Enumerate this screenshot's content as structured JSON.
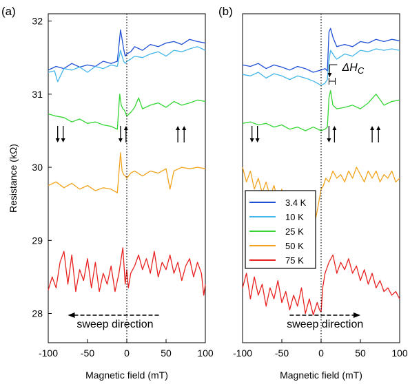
{
  "chart_data": [
    {
      "type": "line",
      "panel": "(a)",
      "xlabel": "Magnetic field (mT)",
      "ylabel": "Resistance (kΩ)",
      "xlim": [
        -100,
        100
      ],
      "ylim": [
        27.6,
        32.1
      ],
      "xticks": [
        "-100",
        "-50",
        "0",
        "50",
        "100"
      ],
      "yticks": [
        "28",
        "29",
        "30",
        "31",
        "32"
      ],
      "sweep_label": "sweep direction",
      "sweep_direction": "negative",
      "legend": null,
      "series": [
        {
          "name": "3.4 K",
          "color": "#1f4fd6",
          "x": [
            -100,
            -90,
            -80,
            -70,
            -60,
            -50,
            -40,
            -30,
            -20,
            -12,
            -8,
            -6,
            -4,
            -2,
            0,
            5,
            10,
            20,
            30,
            40,
            50,
            60,
            70,
            80,
            90,
            100
          ],
          "y": [
            31.33,
            31.38,
            31.35,
            31.42,
            31.37,
            31.4,
            31.38,
            31.45,
            31.42,
            31.45,
            31.88,
            31.75,
            31.62,
            31.52,
            31.55,
            31.58,
            31.65,
            31.6,
            31.68,
            31.65,
            31.7,
            31.72,
            31.68,
            31.75,
            31.72,
            31.7
          ]
        },
        {
          "name": "10 K",
          "color": "#42b6ea",
          "x": [
            -100,
            -92,
            -88,
            -80,
            -70,
            -60,
            -50,
            -40,
            -30,
            -20,
            -12,
            -8,
            -6,
            -4,
            -2,
            0,
            5,
            10,
            20,
            30,
            40,
            50,
            60,
            70,
            80,
            90,
            100
          ],
          "y": [
            31.3,
            31.32,
            31.17,
            31.35,
            31.33,
            31.37,
            31.3,
            31.38,
            31.35,
            31.4,
            31.38,
            31.6,
            31.52,
            31.45,
            31.42,
            31.45,
            31.48,
            31.52,
            31.5,
            31.55,
            31.58,
            31.52,
            31.6,
            31.58,
            31.62,
            31.65,
            31.6
          ]
        },
        {
          "name": "25 K",
          "color": "#33d633",
          "x": [
            -100,
            -90,
            -80,
            -70,
            -60,
            -50,
            -40,
            -30,
            -20,
            -12,
            -9,
            -7,
            -5,
            -3,
            0,
            5,
            10,
            15,
            20,
            30,
            40,
            50,
            60,
            70,
            80,
            90,
            100
          ],
          "y": [
            30.73,
            30.7,
            30.68,
            30.62,
            30.66,
            30.6,
            30.62,
            30.58,
            30.56,
            30.52,
            31.0,
            30.85,
            30.8,
            30.78,
            30.7,
            30.75,
            30.82,
            30.95,
            30.8,
            30.85,
            30.88,
            30.82,
            30.9,
            30.85,
            30.88,
            30.92,
            30.9
          ]
        },
        {
          "name": "50 K",
          "color": "#f2a31c",
          "x": [
            -100,
            -90,
            -80,
            -70,
            -60,
            -50,
            -40,
            -30,
            -20,
            -12,
            -8,
            -6,
            -4,
            -2,
            0,
            5,
            10,
            20,
            30,
            40,
            50,
            55,
            60,
            70,
            80,
            90,
            100
          ],
          "y": [
            29.75,
            29.8,
            29.72,
            29.78,
            29.7,
            29.75,
            29.68,
            29.72,
            29.7,
            29.65,
            30.2,
            29.95,
            29.9,
            29.88,
            29.85,
            29.92,
            29.95,
            29.88,
            29.95,
            29.92,
            29.98,
            29.7,
            29.95,
            30.0,
            29.98,
            30.0,
            29.98
          ]
        },
        {
          "name": "75 K",
          "color": "#e8211f",
          "x": [
            -100,
            -95,
            -90,
            -85,
            -80,
            -75,
            -70,
            -65,
            -60,
            -55,
            -50,
            -45,
            -40,
            -35,
            -30,
            -25,
            -20,
            -15,
            -10,
            -5,
            -2,
            0,
            2,
            5,
            10,
            15,
            20,
            25,
            30,
            35,
            40,
            45,
            50,
            55,
            60,
            65,
            70,
            75,
            80,
            85,
            90,
            95,
            98,
            100
          ],
          "y": [
            28.32,
            28.5,
            28.35,
            28.7,
            28.85,
            28.4,
            28.8,
            28.3,
            28.6,
            28.45,
            28.75,
            28.35,
            28.7,
            28.3,
            28.55,
            28.4,
            28.65,
            28.3,
            28.55,
            28.9,
            28.4,
            28.6,
            28.35,
            28.55,
            28.65,
            28.8,
            28.6,
            28.75,
            28.55,
            28.85,
            28.5,
            28.7,
            28.6,
            28.8,
            28.55,
            28.7,
            28.45,
            28.65,
            28.75,
            28.5,
            28.7,
            28.55,
            28.25,
            28.4
          ]
        }
      ]
    },
    {
      "type": "line",
      "panel": "(b)",
      "xlabel": "Magnetic field (mT)",
      "ylabel": "",
      "xlim": [
        -100,
        100
      ],
      "ylim": [
        27.6,
        32.1
      ],
      "xticks": [
        "-100",
        "-50",
        "0",
        "50",
        "100"
      ],
      "yticks": [],
      "sweep_label": "sweep direction",
      "sweep_direction": "positive",
      "annotation": "ΔH_C",
      "legend": {
        "entries": [
          "3.4 K",
          "10 K",
          "25 K",
          "50 K",
          "75 K"
        ]
      },
      "series": [
        {
          "name": "3.4 K",
          "color": "#1f4fd6",
          "x": [
            -100,
            -90,
            -80,
            -70,
            -60,
            -50,
            -40,
            -30,
            -20,
            -10,
            0,
            5,
            8,
            10,
            12,
            15,
            18,
            20,
            30,
            40,
            50,
            60,
            70,
            80,
            90,
            100
          ],
          "y": [
            31.4,
            31.38,
            31.42,
            31.35,
            31.4,
            31.37,
            31.33,
            31.38,
            31.35,
            31.3,
            31.33,
            31.35,
            31.32,
            31.85,
            31.9,
            31.78,
            31.7,
            31.65,
            31.68,
            31.65,
            31.72,
            31.7,
            31.75,
            31.72,
            31.75,
            31.73
          ]
        },
        {
          "name": "10 K",
          "color": "#42b6ea",
          "x": [
            -100,
            -90,
            -80,
            -70,
            -60,
            -50,
            -40,
            -30,
            -20,
            -10,
            0,
            5,
            8,
            10,
            12,
            15,
            18,
            20,
            30,
            40,
            50,
            60,
            70,
            80,
            90,
            100
          ],
          "y": [
            31.27,
            31.25,
            31.3,
            31.22,
            31.28,
            31.25,
            31.2,
            31.25,
            31.22,
            31.18,
            31.12,
            31.15,
            31.2,
            31.45,
            31.6,
            31.55,
            31.5,
            31.48,
            31.55,
            31.52,
            31.6,
            31.58,
            31.62,
            31.6,
            31.62,
            31.6
          ]
        },
        {
          "name": "25 K",
          "color": "#33d633",
          "x": [
            -100,
            -90,
            -80,
            -70,
            -60,
            -50,
            -40,
            -30,
            -20,
            -10,
            0,
            5,
            8,
            10,
            12,
            15,
            20,
            30,
            40,
            50,
            60,
            70,
            80,
            90,
            100
          ],
          "y": [
            30.6,
            30.62,
            30.58,
            30.6,
            30.55,
            30.58,
            30.52,
            30.55,
            30.5,
            30.55,
            30.5,
            30.52,
            30.55,
            30.95,
            31.05,
            30.85,
            30.8,
            30.82,
            30.85,
            30.8,
            30.88,
            31.0,
            30.85,
            30.9,
            30.92
          ]
        },
        {
          "name": "50 K",
          "color": "#f2a31c",
          "x": [
            -100,
            -95,
            -90,
            -85,
            -80,
            -75,
            -70,
            -65,
            -60,
            -55,
            -50,
            -45,
            -40,
            -35,
            -30,
            -25,
            -20,
            -15,
            -10,
            -5,
            0,
            3,
            6,
            10,
            15,
            20,
            25,
            30,
            35,
            40,
            45,
            50,
            55,
            60,
            65,
            70,
            75,
            80,
            85,
            90,
            95,
            100
          ],
          "y": [
            30.0,
            29.8,
            29.95,
            29.7,
            29.85,
            29.65,
            29.8,
            29.6,
            29.75,
            29.55,
            29.7,
            29.45,
            29.6,
            29.35,
            29.25,
            29.5,
            29.2,
            29.45,
            29.15,
            29.4,
            29.7,
            29.75,
            29.85,
            29.8,
            29.95,
            29.85,
            29.9,
            29.8,
            29.95,
            29.85,
            30.0,
            29.9,
            29.8,
            29.95,
            29.85,
            29.95,
            29.8,
            29.9,
            29.85,
            29.95,
            29.8,
            29.85
          ]
        },
        {
          "name": "75 K",
          "color": "#e8211f",
          "x": [
            -100,
            -95,
            -90,
            -85,
            -80,
            -75,
            -70,
            -65,
            -60,
            -55,
            -50,
            -45,
            -40,
            -35,
            -30,
            -25,
            -20,
            -15,
            -10,
            -5,
            -2,
            0,
            2,
            5,
            10,
            15,
            20,
            25,
            30,
            35,
            40,
            45,
            50,
            55,
            60,
            65,
            70,
            75,
            80,
            85,
            90,
            95,
            100
          ],
          "y": [
            28.35,
            28.55,
            28.2,
            28.5,
            28.25,
            28.4,
            28.1,
            28.35,
            28.2,
            28.45,
            28.15,
            28.3,
            28.05,
            28.25,
            28.1,
            28.35,
            28.0,
            28.2,
            27.98,
            28.15,
            28.05,
            28.02,
            28.35,
            28.55,
            28.7,
            28.8,
            28.55,
            28.7,
            28.6,
            28.75,
            28.55,
            28.65,
            28.45,
            28.6,
            28.4,
            28.55,
            28.35,
            28.45,
            28.3,
            28.35,
            28.25,
            28.3,
            28.2
          ]
        }
      ]
    }
  ]
}
